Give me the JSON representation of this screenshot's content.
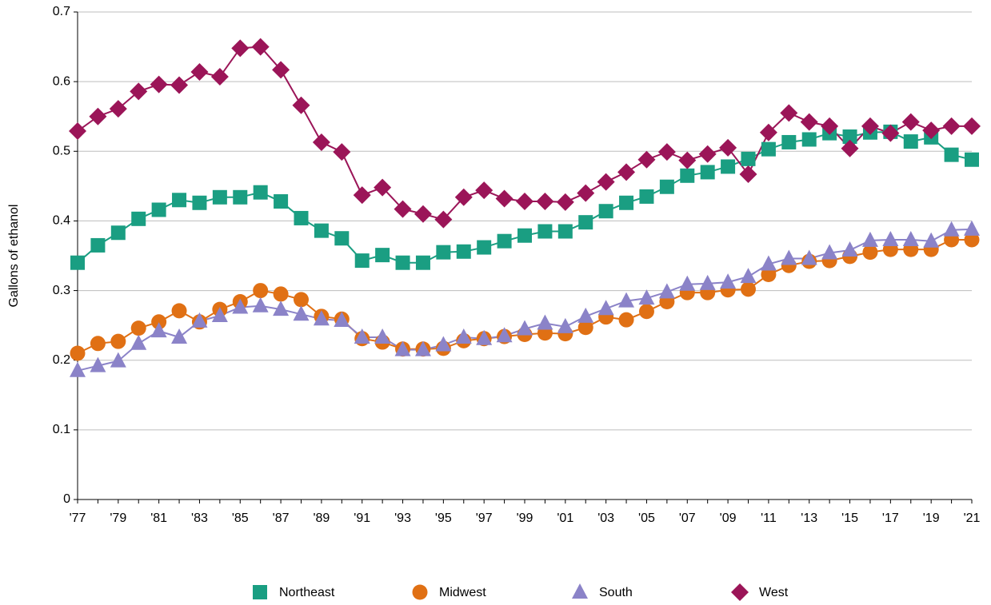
{
  "chart_data": {
    "type": "line",
    "y_label": "Gallons of ethanol",
    "categories": [
      "'77",
      null,
      "'79",
      null,
      "'81",
      null,
      "'83",
      null,
      "'85",
      null,
      "'87",
      null,
      "'89",
      null,
      "'91",
      null,
      "'93",
      null,
      "'95",
      null,
      "'97",
      null,
      "'99",
      null,
      "'01",
      null,
      "'03",
      null,
      "'05",
      null,
      "'07",
      null,
      "'09",
      null,
      "'11",
      null,
      "'13",
      null,
      "'15",
      null,
      "'17",
      null,
      "'19",
      null,
      "'21"
    ],
    "series": [
      {
        "name": "Northeast",
        "color": "#1a9e82",
        "marker": "square",
        "values": [
          0.34,
          0.365,
          0.383,
          0.403,
          0.416,
          0.43,
          0.426,
          0.434,
          0.434,
          0.441,
          0.428,
          0.404,
          0.386,
          0.375,
          0.343,
          0.351,
          0.34,
          0.34,
          0.355,
          0.356,
          0.362,
          0.371,
          0.379,
          0.385,
          0.385,
          0.398,
          0.414,
          0.426,
          0.435,
          0.449,
          0.465,
          0.47,
          0.478,
          0.489,
          0.503,
          0.513,
          0.517,
          0.526,
          0.521,
          0.527,
          0.528,
          0.514,
          0.52,
          0.495,
          0.488
        ]
      },
      {
        "name": "Midwest",
        "color": "#e07014",
        "marker": "circle",
        "values": [
          0.21,
          0.224,
          0.227,
          0.246,
          0.255,
          0.271,
          0.255,
          0.273,
          0.284,
          0.3,
          0.295,
          0.287,
          0.263,
          0.259,
          0.231,
          0.226,
          0.216,
          0.216,
          0.217,
          0.228,
          0.231,
          0.234,
          0.237,
          0.239,
          0.238,
          0.247,
          0.262,
          0.258,
          0.27,
          0.284,
          0.297,
          0.297,
          0.301,
          0.302,
          0.323,
          0.336,
          0.342,
          0.343,
          0.349,
          0.355,
          0.359,
          0.359,
          0.359,
          0.373,
          0.373
        ]
      },
      {
        "name": "South",
        "color": "#8b83c8",
        "marker": "triangle",
        "values": [
          0.185,
          0.192,
          0.199,
          0.224,
          0.242,
          0.233,
          0.256,
          0.264,
          0.276,
          0.278,
          0.273,
          0.266,
          0.259,
          0.257,
          0.233,
          0.233,
          0.215,
          0.215,
          0.222,
          0.233,
          0.231,
          0.235,
          0.245,
          0.253,
          0.248,
          0.263,
          0.274,
          0.285,
          0.289,
          0.298,
          0.309,
          0.31,
          0.312,
          0.32,
          0.338,
          0.346,
          0.346,
          0.354,
          0.358,
          0.372,
          0.373,
          0.373,
          0.371,
          0.387,
          0.388
        ]
      },
      {
        "name": "West",
        "color": "#9b1558",
        "marker": "diamond",
        "values": [
          0.529,
          0.55,
          0.561,
          0.586,
          0.596,
          0.595,
          0.614,
          0.607,
          0.648,
          0.65,
          0.617,
          0.566,
          0.513,
          0.499,
          0.437,
          0.448,
          0.417,
          0.41,
          0.402,
          0.434,
          0.444,
          0.432,
          0.428,
          0.428,
          0.427,
          0.44,
          0.456,
          0.47,
          0.488,
          0.499,
          0.487,
          0.496,
          0.505,
          0.467,
          0.527,
          0.555,
          0.542,
          0.536,
          0.504,
          0.536,
          0.526,
          0.542,
          0.53,
          0.536,
          0.536
        ]
      }
    ],
    "ylim": [
      0,
      0.7
    ],
    "yticks": [
      0,
      0.1,
      0.2,
      0.3,
      0.4,
      0.5,
      0.6,
      0.7
    ],
    "grid": true,
    "legend": "bottom"
  }
}
